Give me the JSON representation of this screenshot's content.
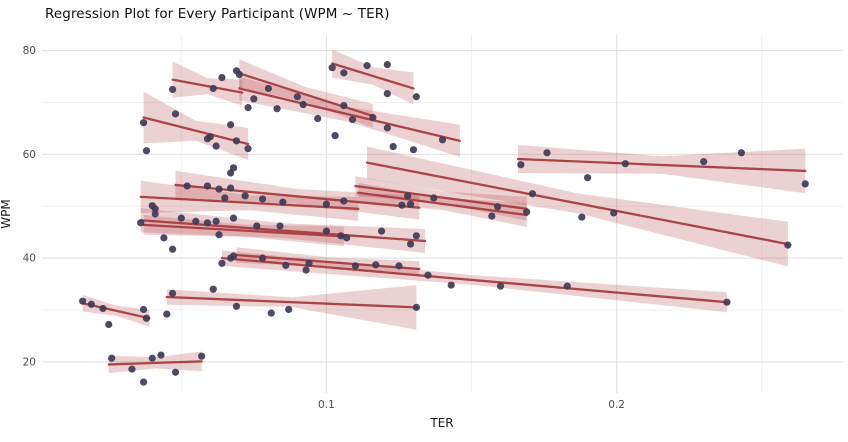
{
  "title": "Regression Plot for Every Participant (WPM ~ TER)",
  "chart_data": {
    "type": "scatter",
    "subtype": "scatter-with-linear-regressions-per-group",
    "title": "Regression Plot for Every Participant (WPM ~ TER)",
    "xlabel": "TER",
    "ylabel": "WPM",
    "xlim": [
      0.002,
      0.278
    ],
    "ylim": [
      14,
      83
    ],
    "x_major_ticks": [
      0.1,
      0.2
    ],
    "x_major_tick_labels": [
      "0.1",
      "0.2"
    ],
    "x_minor_ticks": [
      0.05,
      0.15,
      0.25
    ],
    "y_major_ticks": [
      20,
      40,
      60,
      80
    ],
    "y_major_tick_labels": [
      "20",
      "40",
      "60",
      "80"
    ],
    "y_minor_ticks": [
      30,
      50,
      70
    ],
    "grid": true,
    "legend": "none",
    "style": {
      "background": "#ffffff",
      "major_grid_color": "#e3e3e3",
      "minor_grid_color": "#f1f1f1",
      "regression_line_color": "#a83c40",
      "ci_band_color": "#b4464b",
      "ci_band_alpha": 0.25,
      "point_color": "#3f3b55",
      "point_radius": 3.6,
      "tick_label_color": "#4d4d4d"
    },
    "participants": [
      {
        "line_x": [
          0.047,
          0.071
        ],
        "line_y": [
          74.4,
          71.9
        ],
        "ci_wpm": [
          3.5,
          2.5
        ],
        "points": [
          [
            0.047,
            72.5
          ],
          [
            0.061,
            72.7
          ],
          [
            0.064,
            74.8
          ],
          [
            0.069,
            76.1
          ],
          [
            0.07,
            75.4
          ]
        ]
      },
      {
        "line_x": [
          0.07,
          0.116
        ],
        "line_y": [
          75.6,
          67.4
        ],
        "ci_wpm": [
          2.7,
          2.3
        ],
        "points": [
          [
            0.075,
            70.7
          ],
          [
            0.08,
            72.7
          ],
          [
            0.09,
            71.1
          ],
          [
            0.106,
            69.4
          ]
        ]
      },
      {
        "line_x": [
          0.07,
          0.146
        ],
        "line_y": [
          72.7,
          62.6
        ],
        "ci_wpm": [
          2.3,
          3.1
        ],
        "points": [
          [
            0.073,
            69.0
          ],
          [
            0.083,
            68.8
          ],
          [
            0.092,
            69.6
          ],
          [
            0.097,
            66.9
          ],
          [
            0.103,
            63.6
          ],
          [
            0.109,
            66.7
          ],
          [
            0.116,
            67.1
          ],
          [
            0.121,
            65.1
          ],
          [
            0.123,
            61.5
          ],
          [
            0.13,
            60.9
          ],
          [
            0.14,
            62.8
          ]
        ]
      },
      {
        "line_x": [
          0.037,
          0.073
        ],
        "line_y": [
          67.1,
          62.0
        ],
        "ci_wpm": [
          5.0,
          3.1
        ],
        "points": [
          [
            0.037,
            66.1
          ],
          [
            0.048,
            67.8
          ],
          [
            0.038,
            60.7
          ],
          [
            0.059,
            63.0
          ],
          [
            0.06,
            63.4
          ],
          [
            0.062,
            61.6
          ],
          [
            0.067,
            65.7
          ],
          [
            0.069,
            62.6
          ],
          [
            0.073,
            61.1
          ]
        ]
      },
      {
        "line_x": [
          0.102,
          0.13
        ],
        "line_y": [
          77.5,
          72.7
        ],
        "ci_wpm": [
          2.7,
          3.1
        ],
        "points": [
          [
            0.102,
            76.7
          ],
          [
            0.106,
            75.7
          ],
          [
            0.114,
            77.1
          ],
          [
            0.121,
            77.3
          ],
          [
            0.121,
            71.7
          ],
          [
            0.131,
            71.1
          ]
        ]
      },
      {
        "line_x": [
          0.166,
          0.265
        ],
        "line_y": [
          59.1,
          56.8
        ],
        "ci_wpm": [
          2.7,
          4.3
        ],
        "points": [
          [
            0.167,
            58.0
          ],
          [
            0.176,
            60.3
          ],
          [
            0.19,
            55.5
          ],
          [
            0.203,
            58.2
          ],
          [
            0.23,
            58.6
          ],
          [
            0.243,
            60.3
          ],
          [
            0.265,
            54.3
          ]
        ]
      },
      {
        "line_x": [
          0.114,
          0.259
        ],
        "line_y": [
          58.4,
          42.7
        ],
        "ci_wpm": [
          3.1,
          4.3
        ],
        "points": [
          [
            0.171,
            52.4
          ],
          [
            0.188,
            47.9
          ],
          [
            0.199,
            48.7
          ],
          [
            0.259,
            42.5
          ]
        ]
      },
      {
        "line_x": [
          0.11,
          0.169
        ],
        "line_y": [
          53.9,
          49.5
        ],
        "ci_wpm": [
          1.9,
          2.3
        ],
        "points": [
          [
            0.128,
            52.0
          ],
          [
            0.137,
            51.6
          ],
          [
            0.159,
            49.9
          ],
          [
            0.169,
            48.9
          ]
        ]
      },
      {
        "line_x": [
          0.111,
          0.169
        ],
        "line_y": [
          52.6,
          48.3
        ],
        "ci_wpm": [
          1.9,
          2.3
        ],
        "points": [
          [
            0.129,
            50.4
          ],
          [
            0.157,
            48.1
          ]
        ]
      },
      {
        "line_x": [
          0.048,
          0.132
        ],
        "line_y": [
          54.1,
          49.7
        ],
        "ci_wpm": [
          2.7,
          2.3
        ],
        "points": [
          [
            0.052,
            53.9
          ],
          [
            0.059,
            53.9
          ],
          [
            0.063,
            53.3
          ],
          [
            0.067,
            53.5
          ],
          [
            0.072,
            52.0
          ],
          [
            0.078,
            51.4
          ],
          [
            0.068,
            57.4
          ],
          [
            0.067,
            56.4
          ],
          [
            0.106,
            51.0
          ],
          [
            0.126,
            50.2
          ]
        ]
      },
      {
        "line_x": [
          0.036,
          0.111
        ],
        "line_y": [
          51.8,
          49.5
        ],
        "ci_wpm": [
          3.1,
          2.3
        ],
        "points": [
          [
            0.04,
            50.1
          ],
          [
            0.041,
            48.5
          ],
          [
            0.065,
            51.6
          ],
          [
            0.085,
            50.8
          ],
          [
            0.1,
            50.4
          ]
        ]
      },
      {
        "line_x": [
          0.036,
          0.134
        ],
        "line_y": [
          47.3,
          43.3
        ],
        "ci_wpm": [
          2.3,
          2.3
        ],
        "points": [
          [
            0.036,
            46.8
          ],
          [
            0.041,
            49.5
          ],
          [
            0.05,
            47.7
          ],
          [
            0.055,
            47.1
          ],
          [
            0.059,
            46.8
          ],
          [
            0.062,
            47.1
          ],
          [
            0.068,
            47.7
          ],
          [
            0.076,
            46.2
          ],
          [
            0.084,
            46.2
          ],
          [
            0.1,
            45.2
          ],
          [
            0.119,
            45.2
          ],
          [
            0.131,
            44.3
          ],
          [
            0.129,
            42.7
          ]
        ]
      },
      {
        "line_x": [
          0.037,
          0.106
        ],
        "line_y": [
          46.4,
          44.2
        ],
        "ci_wpm": [
          1.9,
          1.9
        ],
        "points": [
          [
            0.044,
            43.9
          ],
          [
            0.047,
            41.7
          ],
          [
            0.063,
            44.5
          ],
          [
            0.105,
            44.3
          ],
          [
            0.107,
            43.9
          ]
        ]
      },
      {
        "line_x": [
          0.064,
          0.238
        ],
        "line_y": [
          40.0,
          31.5
        ],
        "ci_wpm": [
          1.5,
          1.9
        ],
        "points": [
          [
            0.064,
            39.0
          ],
          [
            0.067,
            40.0
          ],
          [
            0.078,
            40.0
          ],
          [
            0.086,
            38.6
          ],
          [
            0.093,
            37.7
          ],
          [
            0.11,
            38.5
          ],
          [
            0.125,
            38.5
          ],
          [
            0.135,
            36.7
          ],
          [
            0.143,
            34.8
          ],
          [
            0.16,
            34.6
          ],
          [
            0.183,
            34.6
          ],
          [
            0.238,
            31.5
          ]
        ]
      },
      {
        "line_x": [
          0.069,
          0.132
        ],
        "line_y": [
          40.6,
          37.9
        ],
        "ci_wpm": [
          1.5,
          1.5
        ],
        "points": [
          [
            0.068,
            40.4
          ],
          [
            0.094,
            39.0
          ],
          [
            0.117,
            38.7
          ]
        ]
      },
      {
        "line_x": [
          0.045,
          0.131
        ],
        "line_y": [
          32.5,
          30.5
        ],
        "ci_wpm": [
          1.5,
          4.3
        ],
        "points": [
          [
            0.047,
            33.2
          ],
          [
            0.061,
            34.0
          ],
          [
            0.069,
            30.7
          ],
          [
            0.081,
            29.4
          ],
          [
            0.087,
            30.1
          ],
          [
            0.045,
            29.2
          ],
          [
            0.131,
            30.5
          ]
        ]
      },
      {
        "line_x": [
          0.016,
          0.039
        ],
        "line_y": [
          31.3,
          28.4
        ],
        "ci_wpm": [
          1.6,
          1.6
        ],
        "points": [
          [
            0.016,
            31.7
          ],
          [
            0.019,
            31.1
          ],
          [
            0.023,
            30.3
          ],
          [
            0.037,
            30.1
          ],
          [
            0.038,
            28.4
          ],
          [
            0.025,
            27.2
          ]
        ]
      },
      {
        "line_x": [
          0.025,
          0.057
        ],
        "line_y": [
          19.5,
          20.1
        ],
        "ci_wpm": [
          1.7,
          1.9
        ],
        "points": [
          [
            0.026,
            20.7
          ],
          [
            0.033,
            18.6
          ],
          [
            0.037,
            16.1
          ],
          [
            0.04,
            20.7
          ],
          [
            0.043,
            21.3
          ],
          [
            0.048,
            18.0
          ],
          [
            0.057,
            21.1
          ]
        ]
      }
    ]
  }
}
